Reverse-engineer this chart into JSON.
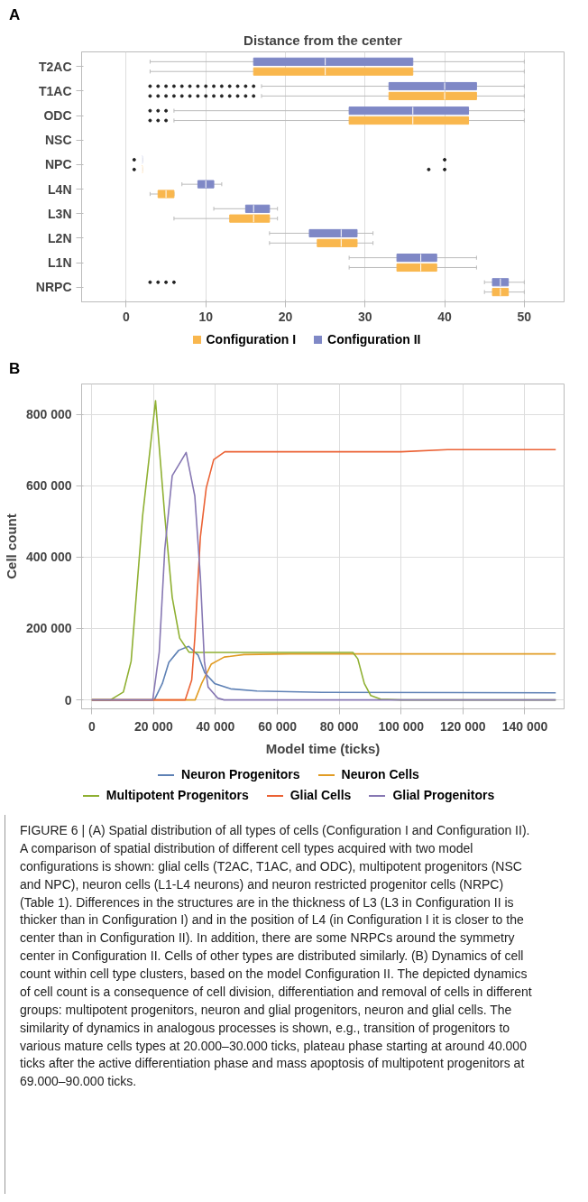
{
  "chart_data": [
    {
      "type": "box",
      "title": "Distance from the center",
      "annotations": [
        "A"
      ],
      "orientation": "horizontal",
      "categories": [
        "T2AC",
        "T1AC",
        "ODC",
        "NSC",
        "NPC",
        "L4N",
        "L3N",
        "L2N",
        "L1N",
        "NRPC"
      ],
      "series": [
        {
          "name": "Configuration I",
          "color": "#f9b74e",
          "boxes": [
            {
              "low": 3,
              "q1": 16,
              "median": 25,
              "q3": 36,
              "high": 50
            },
            {
              "low": 17,
              "q1": 33,
              "median": 40,
              "q3": 44,
              "high": 50,
              "outliers": [
                3,
                4,
                5,
                6,
                7,
                8,
                9,
                10,
                11,
                12,
                13,
                14,
                15,
                16
              ]
            },
            {
              "low": 6,
              "q1": 28,
              "median": 36,
              "q3": 43,
              "high": 50,
              "outliers": [
                3,
                4,
                5
              ]
            },
            null,
            {
              "low": 2,
              "q1": 2,
              "median": 2,
              "q3": 2,
              "high": 2,
              "outliers": [
                1,
                38,
                40
              ]
            },
            {
              "low": 3,
              "q1": 4,
              "median": 5,
              "q3": 6,
              "high": 6
            },
            {
              "low": 6,
              "q1": 13,
              "median": 16,
              "q3": 18,
              "high": 19
            },
            {
              "low": 18,
              "q1": 24,
              "median": 27,
              "q3": 29,
              "high": 31
            },
            {
              "low": 28,
              "q1": 34,
              "median": 37,
              "q3": 39,
              "high": 44
            },
            {
              "low": 45,
              "q1": 46,
              "median": 47,
              "q3": 48,
              "high": 50
            }
          ]
        },
        {
          "name": "Configuration II",
          "color": "#7f88c6",
          "boxes": [
            {
              "low": 3,
              "q1": 16,
              "median": 25,
              "q3": 36,
              "high": 50
            },
            {
              "low": 17,
              "q1": 33,
              "median": 40,
              "q3": 44,
              "high": 50,
              "outliers": [
                3,
                4,
                5,
                6,
                7,
                8,
                9,
                10,
                11,
                12,
                13,
                14,
                15,
                16
              ]
            },
            {
              "low": 6,
              "q1": 28,
              "median": 36,
              "q3": 43,
              "high": 50,
              "outliers": [
                3,
                4,
                5
              ]
            },
            null,
            {
              "low": 2,
              "q1": 2,
              "median": 2,
              "q3": 2,
              "high": 2,
              "outliers": [
                1,
                40
              ]
            },
            {
              "low": 7,
              "q1": 9,
              "median": 10,
              "q3": 11,
              "high": 12
            },
            {
              "low": 11,
              "q1": 15,
              "median": 16,
              "q3": 18,
              "high": 19
            },
            {
              "low": 18,
              "q1": 23,
              "median": 27,
              "q3": 29,
              "high": 31
            },
            {
              "low": 28,
              "q1": 34,
              "median": 37,
              "q3": 39,
              "high": 44
            },
            {
              "low": 45,
              "q1": 46,
              "median": 47,
              "q3": 48,
              "high": 50,
              "outliers": [
                3,
                4,
                5,
                6
              ]
            }
          ]
        }
      ],
      "xlim": [
        -5.6,
        55
      ],
      "xticks": [
        0,
        10,
        20,
        30,
        40,
        50
      ],
      "grid": "x",
      "legend": "bottom"
    },
    {
      "type": "line",
      "annotations": [
        "B",
        "FIGURE 6 | (A) Spatial distribution of all types of cells (Configuration I and Configuration II). A comparison of spatial distribution of different cell types acquired with two model configurations is shown: glial cells (T2AC, T1AC, and ODC), multipotent progenitors (NSC and NPC), neuron cells (L1-L4 neurons) and neuron restricted progenitor cells (NRPC) (Table 1). Differences in the structures are in the thickness of L3 (L3 in Configuration II is thicker than in Configuration I) and in the position of L4 (in Configuration I it is closer to the center than in Configuration II). In addition, there are some NRPCs around the symmetry center in Configuration II. Cells of other types are distributed similarly. (B) Dynamics of cell count within cell type clusters, based on the model Configuration II. The depicted dynamics of cell count is a consequence of cell division, differentiation and removal of cells in different groups: multipotent progenitors, neuron and glial progenitors, neuron and glial cells. The similarity of dynamics in analogous processes is shown, e.g., transition of progenitors to various mature cells types at 20.000–30.000 ticks, plateau phase starting at around 40.000 ticks after the active differentiation phase and mass apoptosis of multipotent progenitors at 69.000–90.000 ticks."
      ],
      "xlabel": "Model time (ticks)",
      "ylabel": "Cell count",
      "xlim": [
        -3300,
        152700
      ],
      "ylim": [
        -25000,
        885000
      ],
      "xticks": [
        0,
        {
          "value": 20000,
          "label": "20 000"
        },
        {
          "value": 40000,
          "label": "40 000"
        },
        {
          "value": 60000,
          "label": "60 000"
        },
        {
          "value": 80000,
          "label": "80 000"
        },
        {
          "value": 100000,
          "label": "100 000"
        },
        {
          "value": 120000,
          "label": "120 000"
        },
        {
          "value": 140000,
          "label": "140 000"
        }
      ],
      "yticks": [
        0,
        {
          "value": 200000,
          "label": "200 000"
        },
        {
          "value": 400000,
          "label": "400 000"
        },
        {
          "value": 600000,
          "label": "600 000"
        },
        {
          "value": 800000,
          "label": "800 000"
        }
      ],
      "grid": true,
      "legend": "bottom",
      "series": [
        {
          "name": "Neuron Progenitors",
          "color": "#5e81b5",
          "x": [
            0,
            20200,
            22800,
            24900,
            28100,
            31300,
            34400,
            36500,
            39700,
            44900,
            53400,
            74400,
            150000
          ],
          "values": [
            0,
            0,
            46000,
            105000,
            139000,
            150000,
            125000,
            76000,
            46000,
            31000,
            25000,
            21000,
            20000
          ]
        },
        {
          "name": "Neuron Cells",
          "color": "#e19c24",
          "x": [
            0,
            33400,
            35500,
            38600,
            42800,
            49200,
            63900,
            150000
          ],
          "values": [
            0,
            0,
            46000,
            100000,
            120000,
            127000,
            129000,
            129000
          ]
        },
        {
          "name": "Multipotent Progenitors",
          "color": "#8fb032",
          "x": [
            0,
            6000,
            10200,
            12700,
            16400,
            20600,
            23600,
            26000,
            28400,
            31400,
            35000,
            84400,
            86000,
            88100,
            90200,
            93400,
            100000,
            150000
          ],
          "values": [
            0,
            0,
            22000,
            108000,
            514000,
            838000,
            514000,
            287000,
            173000,
            134000,
            133000,
            133000,
            115000,
            46000,
            12000,
            2000,
            0,
            0
          ]
        },
        {
          "name": "Glial Cells",
          "color": "#eb6235",
          "x": [
            0,
            30200,
            32300,
            33300,
            35100,
            37000,
            39400,
            43000,
            100000,
            115000,
            150000
          ],
          "values": [
            0,
            0,
            56000,
            173000,
            457000,
            594000,
            673000,
            695000,
            695000,
            701000,
            701000
          ]
        },
        {
          "name": "Glial Progenitors",
          "color": "#8778b3",
          "x": [
            0,
            19700,
            21800,
            23600,
            26000,
            30500,
            33300,
            35100,
            36400,
            37600,
            40700,
            42800,
            150000
          ],
          "values": [
            0,
            0,
            134000,
            423000,
            628000,
            693000,
            571000,
            344000,
            108000,
            36000,
            5000,
            0,
            0
          ]
        }
      ]
    }
  ]
}
